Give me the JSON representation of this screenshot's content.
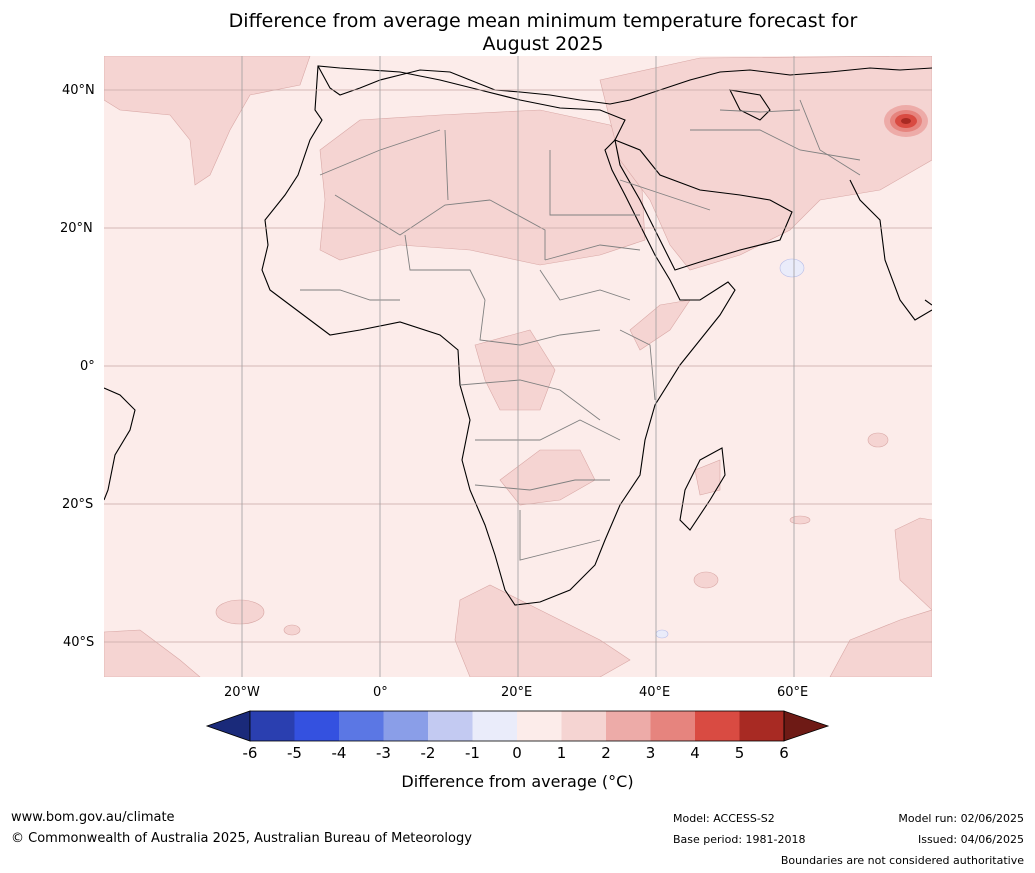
{
  "title_line1": "Difference from average mean minimum temperature forecast for",
  "title_line2": "August 2025",
  "map": {
    "lat_labels": [
      "40°N",
      "20°N",
      "0°",
      "20°S",
      "40°S"
    ],
    "lon_labels": [
      "20°W",
      "0°",
      "20°E",
      "40°E",
      "60°E"
    ],
    "lat_range": [
      -45,
      45
    ],
    "lon_range": [
      -40,
      80
    ],
    "gridlines": true
  },
  "colorbar": {
    "ticks": [
      "-6",
      "-5",
      "-4",
      "-3",
      "-2",
      "-1",
      "0",
      "1",
      "2",
      "3",
      "4",
      "5",
      "6"
    ],
    "colors": [
      "#1a2a7a",
      "#2a3fb0",
      "#3451e0",
      "#5b77e4",
      "#8a9ee8",
      "#c3caf2",
      "#eaecfa",
      "#fcecea",
      "#f5d4d2",
      "#edaba8",
      "#e6847e",
      "#d94b42",
      "#a82a23",
      "#6e1a15"
    ],
    "label": "Difference from average (°C)"
  },
  "footer": {
    "website": "www.bom.gov.au/climate",
    "copyright": "© Commonwealth of Australia 2025, Australian Bureau of Meteorology",
    "model": "Model: ACCESS-S2",
    "base_period": "Base period: 1981-2018",
    "model_run": "Model run: 02/06/2025",
    "issued": "Issued: 04/06/2025",
    "disclaimer": "Boundaries are not considered authoritative"
  }
}
